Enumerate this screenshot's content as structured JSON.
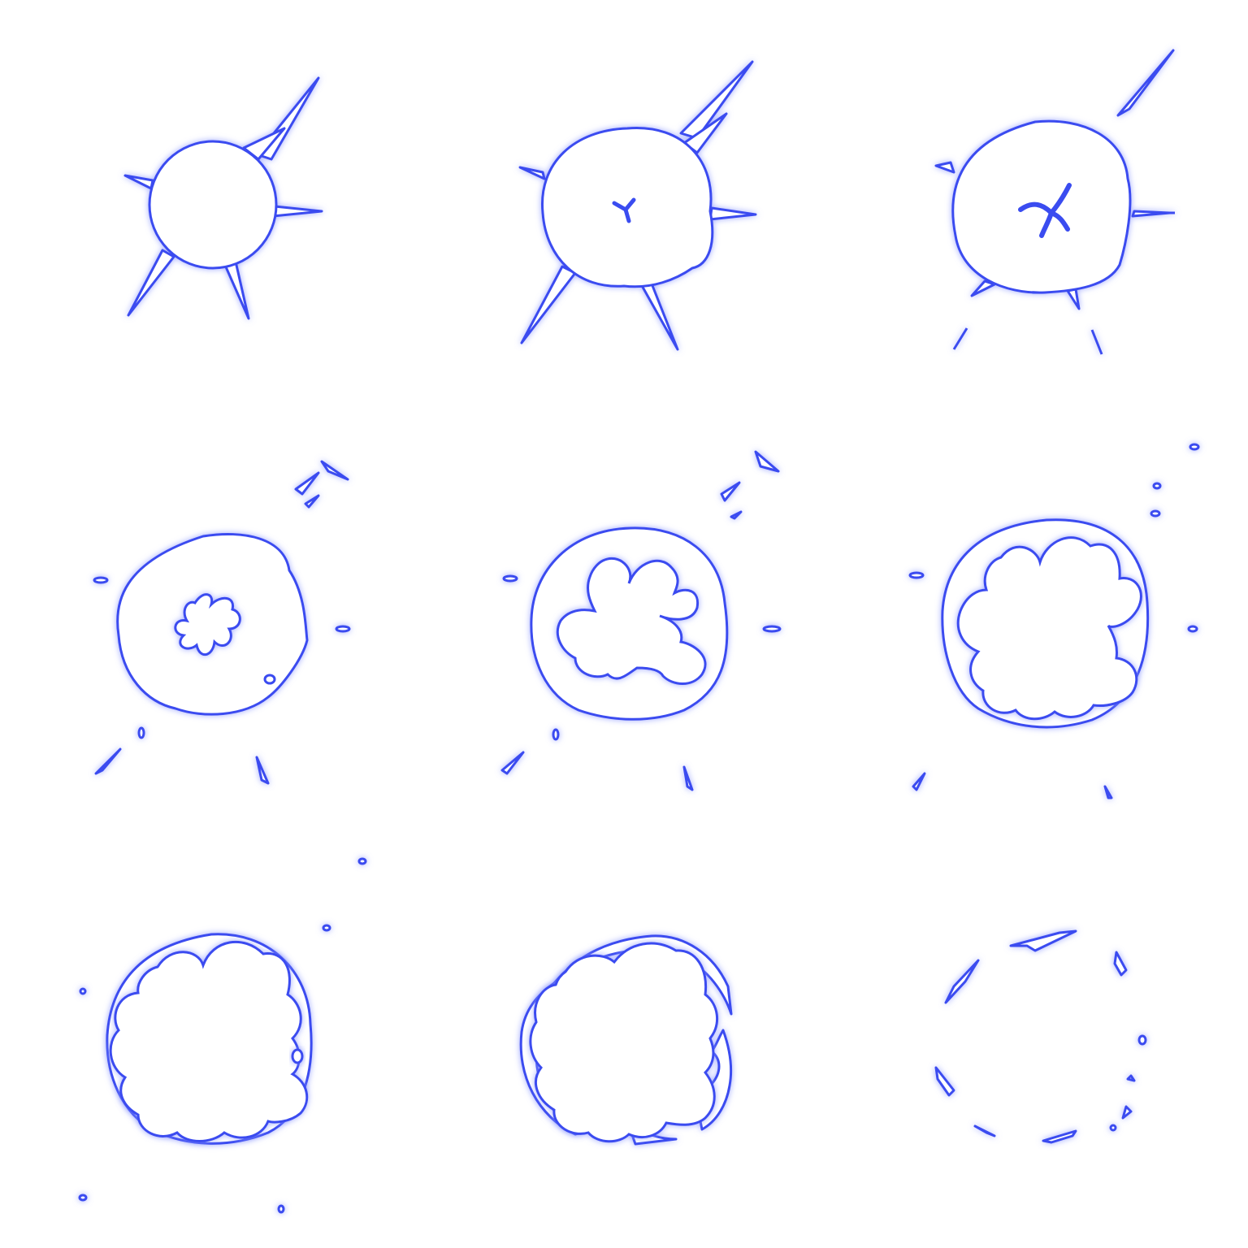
{
  "sprite_sheet": {
    "title": "",
    "rows": 3,
    "cols": 3,
    "colors": {
      "background": "#ffffff",
      "stroke": "#3a4cf0",
      "glow": "#8a96ff",
      "fill": "#ffffff"
    },
    "frames": [
      {
        "index": 1,
        "stage": "burst-spikes"
      },
      {
        "index": 2,
        "stage": "burst-spikes-core-seed"
      },
      {
        "index": 3,
        "stage": "burst-breaking-spikes"
      },
      {
        "index": 4,
        "stage": "burst-splash-fragments"
      },
      {
        "index": 5,
        "stage": "cloud-forming"
      },
      {
        "index": 6,
        "stage": "cloud-expanded"
      },
      {
        "index": 7,
        "stage": "cloud-ring"
      },
      {
        "index": 8,
        "stage": "ring-breaking"
      },
      {
        "index": 9,
        "stage": "ring-fragments"
      }
    ]
  }
}
